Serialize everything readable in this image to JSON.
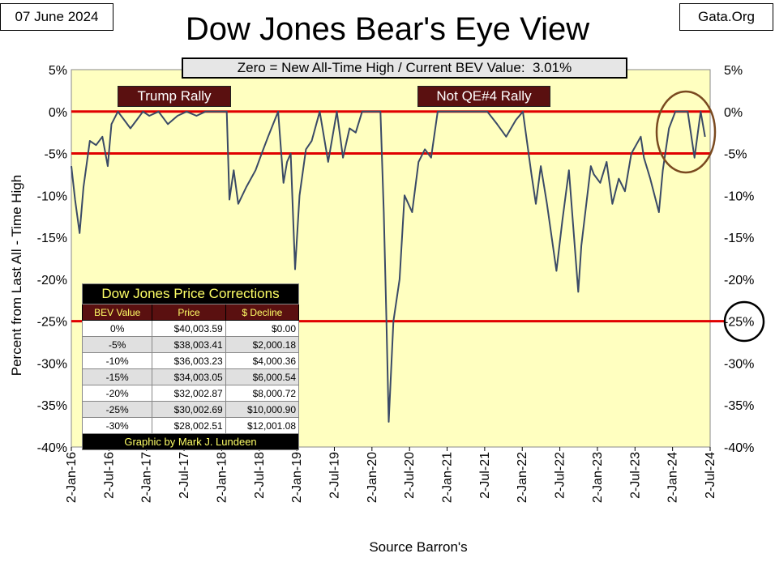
{
  "date_label": "07 June 2024",
  "site_label": "Gata.Org",
  "title": "Dow Jones Bear's Eye View",
  "bev_note": "Zero = New All-Time High / Current BEV Value:  3.01%",
  "annotations": {
    "trump_rally": "Trump Rally",
    "not_qe4_rally": "Not QE#4 Rally",
    "circled_level": "-25%"
  },
  "colors": {
    "plot_bg": "#ffffc0",
    "line": "#3a4a66",
    "ref_line": "#e00000",
    "circle_brown": "#7a4a20",
    "label_bg": "#5a1010"
  },
  "axis": {
    "ylabel": "Percent  from  Last  All - Time  High",
    "xlabel": "Source Barron's",
    "ytick_left": [
      "5%",
      "0%",
      "-5%",
      "-10%",
      "-15%",
      "-20%",
      "-25%",
      "-30%",
      "-35%",
      "-40%"
    ],
    "ytick_right": [
      "5%",
      "0%",
      "-5%",
      "-10%",
      "-15%",
      "-20%",
      "-25%",
      "-30%",
      "-35%",
      "-40%"
    ],
    "xtick_labels": [
      "2-Jan-16",
      "2-Jul-16",
      "2-Jan-17",
      "2-Jul-17",
      "2-Jan-18",
      "2-Jul-18",
      "2-Jan-19",
      "2-Jul-19",
      "2-Jan-20",
      "2-Jul-20",
      "2-Jan-21",
      "2-Jul-21",
      "2-Jan-22",
      "2-Jul-22",
      "2-Jan-23",
      "2-Jul-23",
      "2-Jan-24",
      "2-Jul-24"
    ]
  },
  "table": {
    "title": "Dow Jones Price Corrections",
    "headers": [
      "BEV Value",
      "Price",
      "$ Decline"
    ],
    "rows": [
      [
        "0%",
        "$40,003.59",
        "$0.00"
      ],
      [
        "-5%",
        "$38,003.41",
        "$2,000.18"
      ],
      [
        "-10%",
        "$36,003.23",
        "$4,000.36"
      ],
      [
        "-15%",
        "$34,003.05",
        "$6,000.54"
      ],
      [
        "-20%",
        "$32,002.87",
        "$8,000.72"
      ],
      [
        "-25%",
        "$30,002.69",
        "$10,000.90"
      ],
      [
        "-30%",
        "$28,002.51",
        "$12,001.08"
      ]
    ],
    "footer": "Graphic by Mark J. Lundeen"
  },
  "chart_data": {
    "type": "line",
    "title": "Dow Jones Bear's Eye View",
    "xlabel": "Source Barron's",
    "ylabel": "Percent  from  Last  All - Time  High",
    "ylim": [
      -40,
      5
    ],
    "xlim": [
      "2016-01-02",
      "2024-07-02"
    ],
    "reference_lines": [
      0,
      -5,
      -25
    ],
    "grid": false,
    "series": [
      {
        "x": [
          "2016-01-02",
          "2016-01-20",
          "2016-02-11",
          "2016-03-01",
          "2016-04-01",
          "2016-05-01",
          "2016-06-01",
          "2016-06-27",
          "2016-07-15",
          "2016-08-15",
          "2016-09-15",
          "2016-10-15",
          "2016-11-15",
          "2016-12-15",
          "2017-01-15",
          "2017-03-01",
          "2017-04-15",
          "2017-06-01",
          "2017-07-15",
          "2017-09-01",
          "2017-10-15",
          "2017-12-01",
          "2018-01-26",
          "2018-02-08",
          "2018-03-01",
          "2018-03-23",
          "2018-05-01",
          "2018-06-15",
          "2018-07-15",
          "2018-08-15",
          "2018-10-03",
          "2018-10-29",
          "2018-11-15",
          "2018-12-03",
          "2018-12-24",
          "2019-01-15",
          "2019-02-15",
          "2019-03-15",
          "2019-04-23",
          "2019-06-03",
          "2019-07-15",
          "2019-08-14",
          "2019-09-15",
          "2019-10-15",
          "2019-11-15",
          "2019-12-15",
          "2020-01-15",
          "2020-02-12",
          "2020-02-28",
          "2020-03-12",
          "2020-03-23",
          "2020-04-15",
          "2020-05-15",
          "2020-06-08",
          "2020-07-15",
          "2020-08-15",
          "2020-09-15",
          "2020-10-15",
          "2020-11-16",
          "2020-12-15",
          "2021-01-15",
          "2021-03-01",
          "2021-04-15",
          "2021-06-01",
          "2021-07-15",
          "2021-09-01",
          "2021-10-15",
          "2021-12-01",
          "2022-01-04",
          "2022-02-15",
          "2022-03-08",
          "2022-04-01",
          "2022-05-01",
          "2022-06-16",
          "2022-07-15",
          "2022-08-16",
          "2022-09-30",
          "2022-10-15",
          "2022-11-30",
          "2022-12-15",
          "2023-01-15",
          "2023-02-15",
          "2023-03-15",
          "2023-04-15",
          "2023-05-15",
          "2023-06-15",
          "2023-07-31",
          "2023-08-15",
          "2023-09-15",
          "2023-10-27",
          "2023-11-15",
          "2023-12-15",
          "2024-01-15",
          "2024-02-15",
          "2024-03-15",
          "2024-04-17",
          "2024-05-17",
          "2024-06-07"
        ],
        "y": [
          -6.5,
          -10.5,
          -14.5,
          -9,
          -3.5,
          -4,
          -3,
          -6.5,
          -1.5,
          0,
          -1,
          -2,
          -1,
          0,
          -0.5,
          0,
          -1.5,
          -0.5,
          0,
          -0.5,
          0,
          0,
          0,
          -10.5,
          -7,
          -11,
          -9,
          -7,
          -5,
          -3,
          0,
          -8.5,
          -6,
          -5,
          -18.8,
          -10,
          -4.5,
          -3.5,
          0,
          -6,
          0,
          -5.5,
          -2,
          -2.5,
          0,
          0,
          0,
          0,
          -12,
          -25,
          -37,
          -25,
          -20,
          -10,
          -12,
          -6,
          -4.5,
          -5.5,
          0,
          0,
          0,
          0,
          0,
          0,
          0,
          -1.5,
          -3,
          -1,
          0,
          -7.5,
          -11,
          -6.5,
          -11,
          -19,
          -13,
          -7,
          -21.5,
          -16,
          -6.5,
          -7.5,
          -8.5,
          -6,
          -11,
          -8,
          -9.5,
          -5,
          -3,
          -5.5,
          -8,
          -12,
          -7,
          -2,
          0,
          0,
          0,
          -5.5,
          0,
          -3.01
        ]
      }
    ]
  }
}
